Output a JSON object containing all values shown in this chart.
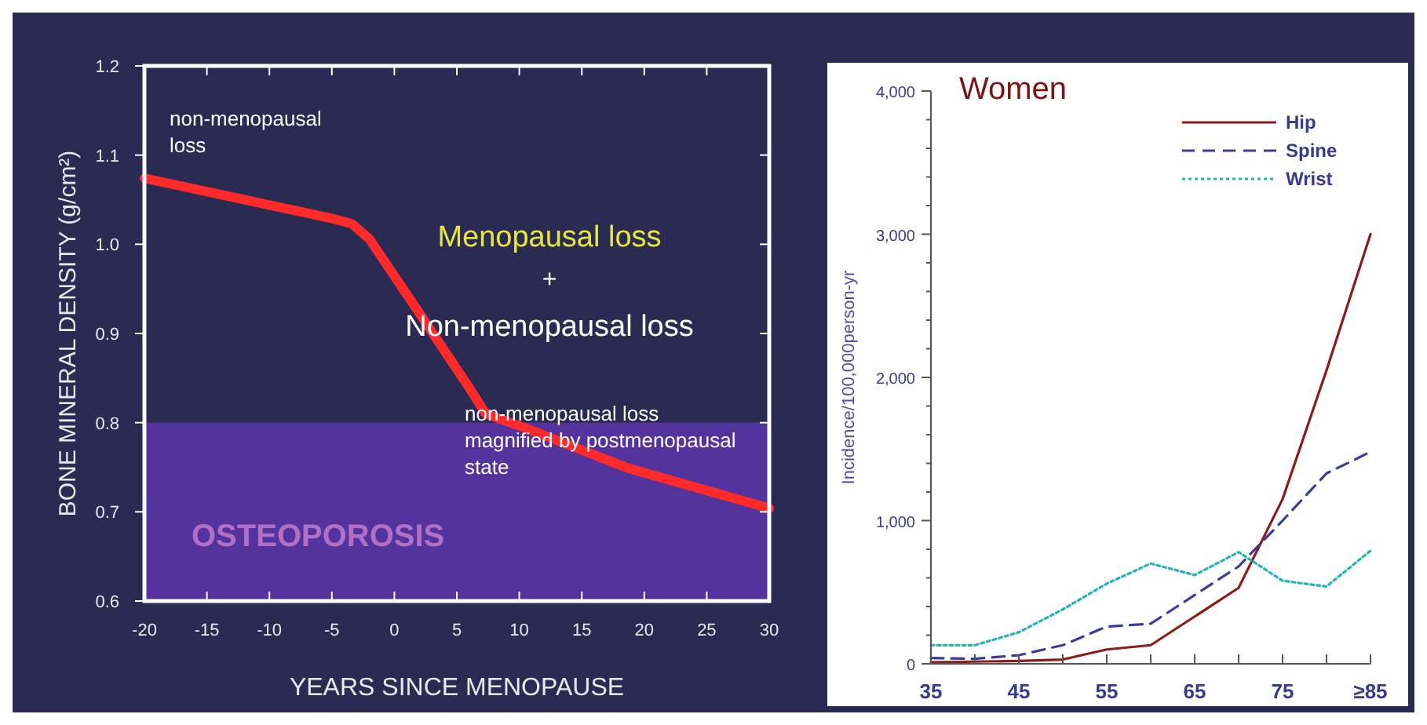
{
  "chart_data": [
    {
      "type": "line",
      "xlabel": "YEARS SINCE MENOPAUSE",
      "ylabel": "BONE MINERAL DENSITY (g/cm²)",
      "x": [
        -20,
        -5,
        -3.4,
        -2,
        1.8,
        6,
        7.3,
        10.3,
        14.5,
        18.7,
        30
      ],
      "series": [
        {
          "color": "#ff2a2a",
          "values": [
            1.074,
            1.029,
            1.023,
            1.006,
            0.927,
            0.839,
            0.81,
            0.795,
            0.772,
            0.749,
            0.704
          ]
        }
      ],
      "xlim": [
        -20,
        30
      ],
      "xticks": [
        -20,
        -15,
        -10,
        -5,
        0,
        5,
        10,
        15,
        20,
        25,
        30
      ],
      "ylim": [
        0.6,
        1.2
      ],
      "yticks": [
        0.6,
        0.7,
        0.8,
        0.9,
        {
          "value": 1,
          "label": "1.0"
        },
        1.1,
        1.2
      ],
      "bands": [
        {
          "axis": "y",
          "from": 0.6,
          "to": 0.8,
          "label": "OSTEOPOROSIS",
          "color": "#55339d"
        }
      ],
      "annotations": [
        "non-menopausal\nloss",
        "Menopausal loss",
        "+",
        "Non-menopausal loss",
        "non-menopausal loss\nmagnified by postmenopausal\nstate"
      ],
      "grid": false,
      "legend": false
    },
    {
      "type": "line",
      "title": "Women",
      "ylabel": "Incidence/100,000person-yr",
      "x": [
        35,
        40,
        45,
        50,
        55,
        60,
        65,
        70,
        75,
        80,
        85
      ],
      "series": [
        {
          "name": "Hip",
          "color": "#8b1c1c",
          "line_style": "solid",
          "values": [
            10,
            15,
            20,
            30,
            100,
            130,
            330,
            530,
            1150,
            2050,
            3000
          ]
        },
        {
          "name": "Spine",
          "color": "#3c3c9c",
          "line_style": "dashed",
          "values": [
            40,
            35,
            60,
            130,
            260,
            280,
            480,
            680,
            1000,
            1330,
            1480
          ]
        },
        {
          "name": "Wrist",
          "color": "#25b5b0",
          "line_style": "dotted",
          "values": [
            130,
            130,
            220,
            380,
            560,
            700,
            620,
            780,
            580,
            540,
            790
          ]
        }
      ],
      "xlim": [
        35,
        85
      ],
      "xticks": [
        35,
        {
          "value": 40,
          "label": null
        },
        45,
        {
          "value": 50,
          "label": null
        },
        55,
        {
          "value": 60,
          "label": null
        },
        65,
        {
          "value": 70,
          "label": null
        },
        75,
        {
          "value": 80,
          "label": null
        },
        {
          "value": 85,
          "label": "≥85"
        }
      ],
      "ylim": [
        0,
        4000
      ],
      "yticks": [
        0,
        {
          "value": 200,
          "label": null
        },
        {
          "value": 400,
          "label": null
        },
        {
          "value": 600,
          "label": null
        },
        {
          "value": 800,
          "label": null
        },
        {
          "value": 1000,
          "label": "1,000"
        },
        {
          "value": 1200,
          "label": null
        },
        {
          "value": 1400,
          "label": null
        },
        {
          "value": 1600,
          "label": null
        },
        {
          "value": 1800,
          "label": null
        },
        {
          "value": 2000,
          "label": "2,000"
        },
        {
          "value": 2200,
          "label": null
        },
        {
          "value": 2400,
          "label": null
        },
        {
          "value": 2600,
          "label": null
        },
        {
          "value": 2800,
          "label": null
        },
        {
          "value": 3000,
          "label": "3,000"
        },
        {
          "value": 3200,
          "label": null
        },
        {
          "value": 3400,
          "label": null
        },
        {
          "value": 3600,
          "label": null
        },
        {
          "value": 3800,
          "label": null
        },
        {
          "value": 4000,
          "label": "4,000"
        }
      ],
      "grid": false,
      "legend": "top right"
    }
  ]
}
